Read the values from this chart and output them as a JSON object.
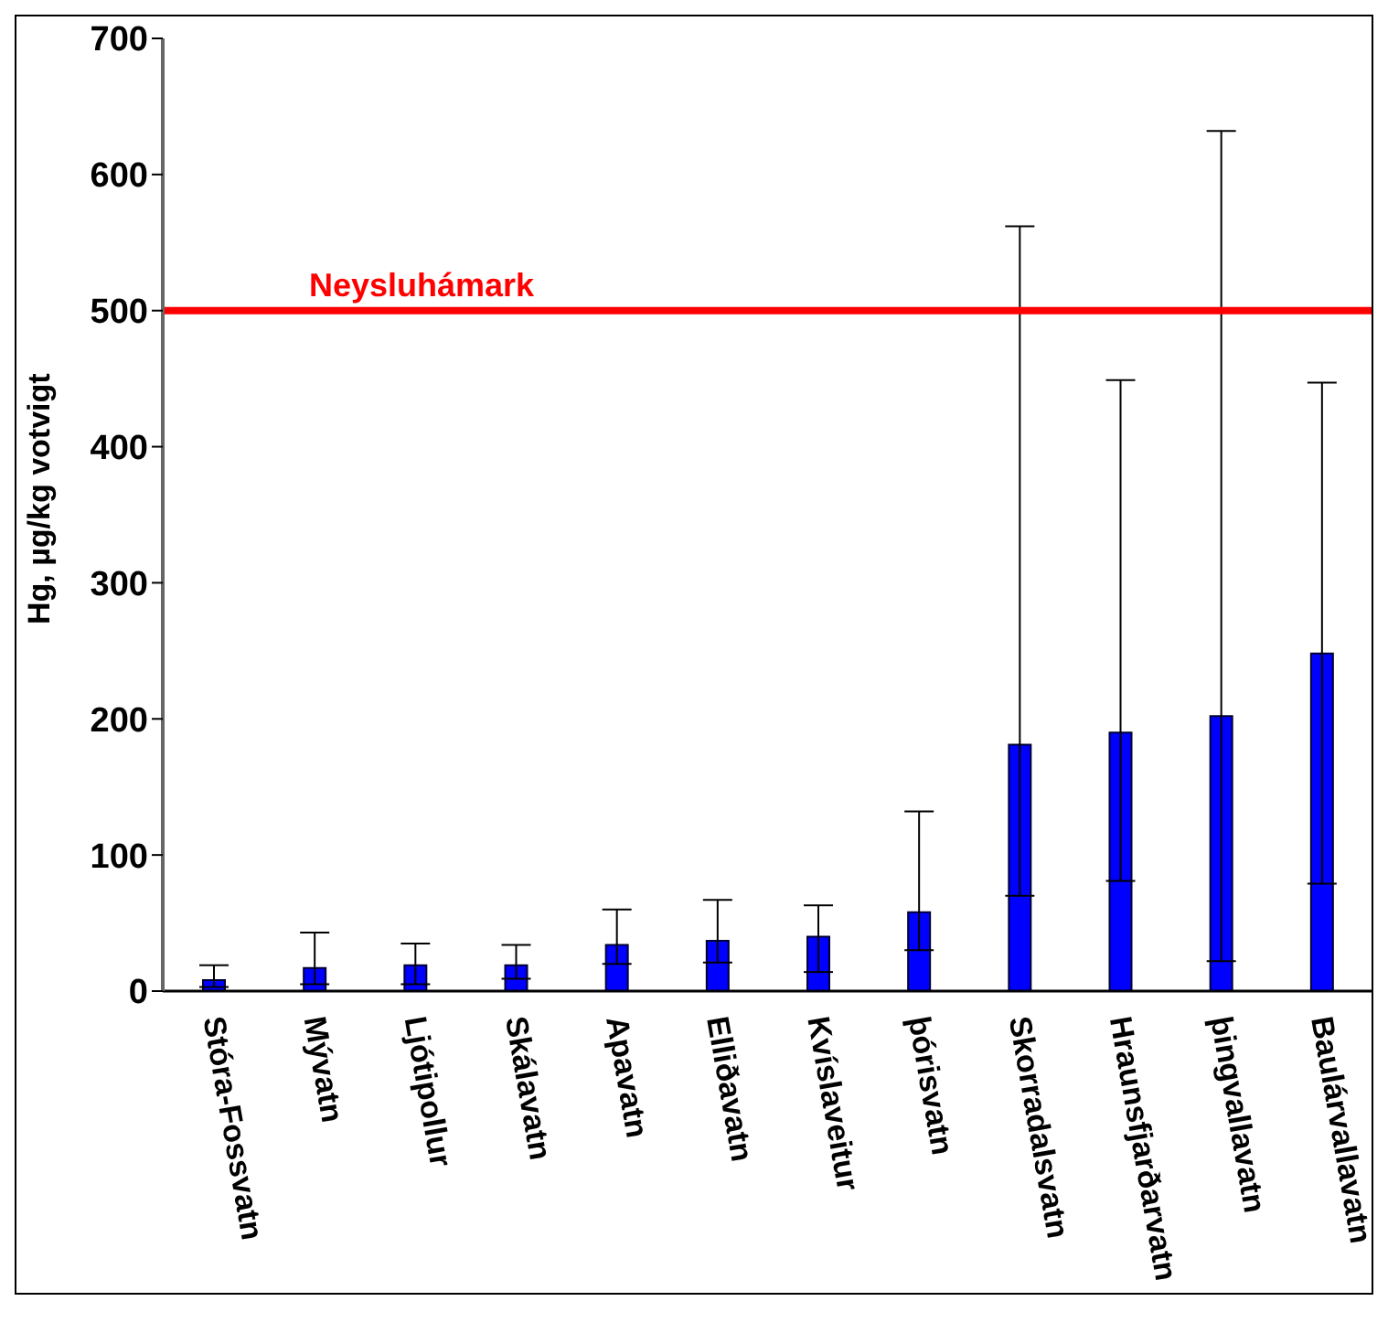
{
  "chart_data": {
    "type": "bar",
    "ylabel": "Hg, µg/kg votvigt",
    "categories": [
      "Stóra-Fossvatn",
      "Mývatn",
      "Ljótipollur",
      "Skálavatn",
      "Apavatn",
      "Elliðavatn",
      "Kvíslaveitur",
      "þórisvatn",
      "Skorradalsvatn",
      "Hraunsfjarðarvatn",
      "þingvallavatn",
      "Baulárvallavatn"
    ],
    "values": [
      8,
      17,
      19,
      19,
      34,
      37,
      40,
      58,
      181,
      190,
      202,
      248
    ],
    "errors": [
      [
        3,
        19
      ],
      [
        5,
        43
      ],
      [
        5,
        35
      ],
      [
        9,
        34
      ],
      [
        20,
        60
      ],
      [
        21,
        67
      ],
      [
        14,
        63
      ],
      [
        30,
        132
      ],
      [
        70,
        562
      ],
      [
        81,
        449
      ],
      [
        22,
        632
      ],
      [
        79,
        447
      ]
    ],
    "color": "#0000ff",
    "ylim": [
      0,
      700
    ],
    "yticks": [
      0,
      100,
      200,
      300,
      400,
      500,
      600,
      700
    ],
    "grid": false,
    "legend": false,
    "ref_lines": [
      {
        "axis": "y",
        "value": 500,
        "label": "Neysluhámark",
        "color": "#ff0000"
      }
    ]
  }
}
